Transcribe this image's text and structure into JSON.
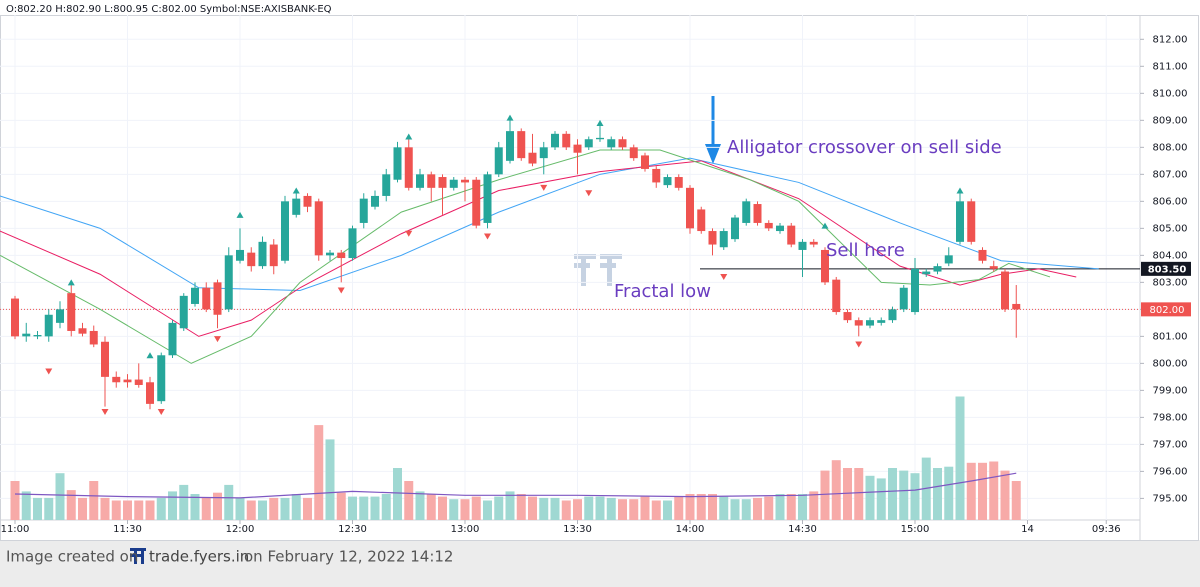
{
  "chart_data": {
    "type": "candlestick",
    "header": "O:802.20 H:802.90 L:800.95 C:802.00 Symbol:NSE:AXISBANK-EQ",
    "x": [
      0,
      3,
      6,
      9,
      12,
      15,
      18,
      21,
      24,
      27,
      30,
      33,
      36,
      39,
      42,
      45,
      48,
      51,
      54,
      57,
      60,
      63,
      66,
      69,
      72,
      75,
      78,
      81,
      84,
      87,
      90,
      93,
      96,
      99,
      102,
      105,
      108,
      111,
      114,
      117,
      120,
      123,
      126,
      129,
      132,
      135,
      138,
      141,
      144,
      147,
      150,
      153,
      156,
      159,
      162,
      165,
      168,
      171,
      174,
      177,
      180,
      183,
      186,
      189,
      192,
      195,
      198,
      201,
      204,
      207,
      210,
      213,
      216,
      219,
      222,
      225,
      228,
      231,
      234,
      237,
      240,
      243,
      246,
      249,
      252,
      255,
      258,
      261,
      264,
      267
    ],
    "open": [
      802.4,
      801.0,
      801.0,
      801.0,
      801.5,
      802.6,
      801.3,
      801.2,
      800.8,
      799.5,
      799.4,
      799.4,
      799.3,
      798.6,
      800.3,
      801.3,
      802.2,
      802.8,
      803.0,
      802.0,
      803.8,
      804.1,
      803.6,
      804.4,
      803.8,
      805.5,
      806.2,
      806.0,
      804.0,
      804.1,
      803.9,
      805.2,
      805.8,
      806.2,
      806.8,
      808.0,
      806.5,
      807.0,
      806.9,
      806.5,
      806.8,
      806.8,
      805.2,
      807.0,
      807.5,
      808.6,
      807.8,
      807.6,
      808.0,
      808.5,
      808.1,
      808.0,
      808.3,
      808.0,
      808.3,
      808.0,
      807.7,
      807.2,
      806.6,
      806.9,
      806.5,
      805.7,
      804.9,
      804.3,
      804.6,
      805.2,
      805.9,
      805.2,
      804.9,
      805.1,
      804.2,
      804.5,
      804.2,
      803.1,
      801.9,
      801.6,
      801.4,
      801.5,
      801.6,
      802.0,
      801.9,
      803.3,
      803.4,
      803.7,
      804.5,
      806.0,
      804.2,
      803.6,
      803.4,
      802.2
    ],
    "high": [
      802.5,
      801.5,
      801.2,
      802.0,
      802.3,
      802.9,
      801.5,
      801.4,
      801.0,
      799.7,
      799.6,
      800.0,
      799.5,
      800.4,
      801.6,
      802.6,
      803.0,
      803.0,
      803.1,
      804.3,
      805.0,
      804.3,
      804.7,
      804.6,
      806.2,
      806.3,
      806.3,
      806.1,
      804.2,
      804.2,
      805.1,
      806.3,
      806.4,
      807.2,
      808.2,
      808.3,
      807.2,
      807.1,
      807.0,
      806.9,
      806.9,
      806.9,
      807.1,
      808.2,
      809.0,
      808.7,
      808.5,
      808.2,
      808.6,
      808.6,
      808.3,
      808.4,
      809.0,
      808.4,
      808.4,
      808.1,
      807.8,
      807.3,
      807.0,
      807.0,
      806.6,
      805.8,
      805.0,
      805.0,
      805.5,
      806.1,
      806.0,
      805.3,
      805.2,
      805.2,
      804.6,
      804.6,
      804.3,
      803.2,
      802.0,
      801.7,
      801.7,
      801.7,
      802.1,
      802.9,
      803.9,
      803.5,
      803.7,
      804.3,
      806.4,
      806.1,
      804.3,
      803.8,
      803.5,
      802.9
    ],
    "low": [
      800.9,
      800.8,
      800.9,
      800.8,
      801.3,
      801.0,
      801.0,
      800.6,
      798.4,
      799.1,
      799.1,
      799.1,
      798.3,
      798.5,
      800.2,
      801.2,
      802.1,
      801.9,
      801.3,
      801.9,
      803.7,
      803.4,
      803.5,
      803.3,
      803.7,
      805.4,
      805.6,
      803.8,
      803.8,
      803.0,
      803.8,
      805.0,
      805.7,
      806.0,
      806.7,
      806.4,
      806.4,
      806.0,
      805.5,
      806.4,
      806.0,
      805.0,
      805.0,
      806.9,
      807.4,
      807.5,
      807.3,
      807.0,
      807.9,
      807.9,
      807.0,
      807.9,
      808.2,
      807.9,
      807.9,
      807.5,
      807.1,
      806.5,
      806.5,
      806.4,
      804.8,
      804.8,
      804.0,
      804.2,
      804.5,
      805.1,
      805.1,
      804.9,
      804.8,
      804.3,
      803.2,
      804.3,
      802.9,
      801.8,
      801.5,
      801.0,
      801.3,
      801.4,
      801.5,
      801.9,
      801.8,
      803.2,
      803.3,
      803.6,
      804.4,
      804.4,
      803.7,
      803.4,
      801.9,
      800.95
    ],
    "close": [
      801.0,
      801.1,
      801.05,
      801.8,
      802.0,
      801.2,
      801.1,
      800.7,
      799.5,
      799.3,
      799.3,
      799.2,
      798.5,
      800.3,
      801.5,
      802.5,
      802.8,
      802.0,
      801.8,
      804.0,
      804.2,
      803.6,
      804.5,
      803.6,
      806.0,
      806.1,
      805.8,
      804.0,
      804.1,
      803.9,
      805.0,
      806.1,
      806.2,
      807.0,
      808.0,
      806.5,
      807.0,
      806.5,
      806.5,
      806.8,
      806.7,
      805.1,
      807.0,
      808.0,
      808.6,
      807.6,
      807.4,
      808.0,
      808.5,
      808.0,
      807.8,
      808.3,
      808.35,
      808.3,
      808.0,
      807.6,
      807.2,
      806.7,
      806.9,
      806.5,
      805.0,
      804.9,
      804.4,
      804.9,
      805.4,
      806.0,
      805.2,
      805.0,
      805.1,
      804.4,
      804.5,
      804.4,
      803.0,
      801.9,
      801.6,
      801.4,
      801.6,
      801.6,
      802.0,
      802.8,
      803.5,
      803.4,
      803.6,
      804.0,
      806.0,
      804.5,
      803.8,
      803.5,
      802.0,
      802.0
    ],
    "up_color": "#26a69a",
    "down_color": "#ef5350",
    "volume": {
      "values": [
        30,
        22,
        17,
        17,
        36,
        23,
        17,
        30,
        17,
        15,
        15,
        15,
        15,
        17,
        22,
        27,
        20,
        17,
        21,
        27,
        17,
        15,
        15,
        17,
        17,
        20,
        17,
        73,
        62,
        21,
        18,
        18,
        18,
        20,
        40,
        30,
        22,
        20,
        18,
        16,
        16,
        18,
        15,
        18,
        22,
        20,
        18,
        17,
        17,
        15,
        16,
        18,
        18,
        17,
        16,
        16,
        18,
        15,
        15,
        18,
        20,
        20,
        20,
        18,
        16,
        16,
        17,
        18,
        20,
        20,
        20,
        22,
        38,
        46,
        40,
        40,
        34,
        32,
        40,
        38,
        36,
        48,
        40,
        41,
        95,
        44,
        44,
        45,
        38,
        30
      ],
      "ylim": [
        0,
        100
      ],
      "up_color": "#9fd8d2",
      "down_color": "#f7aaa8"
    },
    "volume_ma": {
      "color": "#7e57c2",
      "x": [
        0,
        30,
        60,
        90,
        120,
        150,
        180,
        210,
        240,
        255,
        267
      ],
      "values": [
        20,
        18,
        17,
        22,
        19,
        19,
        18,
        19,
        23,
        30,
        36
      ]
    },
    "series": [
      {
        "name": "Jaw",
        "color": "#42a5f5",
        "x": [
          -4,
          22.7,
          49,
          76,
          103,
          129,
          156,
          180,
          209,
          236,
          263,
          289
        ],
        "values": [
          806.2,
          805.0,
          802.8,
          802.7,
          804.0,
          805.6,
          807.0,
          807.6,
          806.7,
          805.2,
          803.8,
          803.5
        ]
      },
      {
        "name": "Teeth",
        "color": "#e91e63",
        "x": [
          -4,
          22.7,
          49,
          63,
          76,
          103,
          129,
          156,
          183,
          209,
          236,
          252,
          263,
          273,
          283
        ],
        "values": [
          804.9,
          803.3,
          801.0,
          801.6,
          802.8,
          804.8,
          806.4,
          807.1,
          807.5,
          806.1,
          803.6,
          802.9,
          803.3,
          803.5,
          803.2
        ]
      },
      {
        "name": "Lips",
        "color": "#66bb6a",
        "x": [
          -4,
          22.7,
          47,
          63,
          76,
          103,
          129,
          156,
          172,
          196,
          209,
          231,
          244,
          257,
          265,
          276
        ],
        "values": [
          804.0,
          802.0,
          800.0,
          801.0,
          803.0,
          805.6,
          806.8,
          807.9,
          807.9,
          806.8,
          806.0,
          803.0,
          802.9,
          803.1,
          803.7,
          803.2
        ]
      }
    ],
    "fractal_up": {
      "color": "#26a69a",
      "x": [
        15,
        36,
        60,
        75,
        105,
        132,
        156,
        216,
        252
      ],
      "values": [
        803.0,
        800.3,
        805.5,
        806.4,
        808.4,
        809.1,
        808.9,
        805.1,
        806.4
      ]
    },
    "fractal_down": {
      "color": "#ef5350",
      "x": [
        9,
        24,
        39,
        54,
        87,
        105,
        126,
        141,
        153,
        189,
        225
      ],
      "values": [
        799.7,
        798.2,
        798.2,
        800.9,
        802.7,
        804.8,
        804.7,
        806.5,
        806.3,
        803.2,
        800.7
      ]
    },
    "price_lines": [
      {
        "value": 803.5,
        "label": "803.50",
        "color": "#131722"
      },
      {
        "value": 802.0,
        "label": "802.00",
        "color": "#ef5350"
      }
    ],
    "annotations": [
      "Alligator crossover on sell side",
      "Sell here",
      "Fractal low"
    ],
    "xlim": [
      -4,
      300
    ],
    "xticks": [
      {
        "value": 0,
        "label": "11:00"
      },
      {
        "value": 30,
        "label": "11:30"
      },
      {
        "value": 60,
        "label": "12:00"
      },
      {
        "value": 90,
        "label": "12:30"
      },
      {
        "value": 120,
        "label": "13:00"
      },
      {
        "value": 150,
        "label": "13:30"
      },
      {
        "value": 180,
        "label": "14:00"
      },
      {
        "value": 210,
        "label": "14:30"
      },
      {
        "value": 240,
        "label": "15:00"
      },
      {
        "value": 270,
        "label": "14"
      },
      {
        "value": 291,
        "label": "09:36"
      }
    ],
    "ylim": [
      794.2,
      812.9
    ],
    "yticks": [
      {
        "value": 795,
        "label": "795.00"
      },
      {
        "value": 796,
        "label": "796.00"
      },
      {
        "value": 797,
        "label": "797.00"
      },
      {
        "value": 798,
        "label": "798.00"
      },
      {
        "value": 799,
        "label": "799.00"
      },
      {
        "value": 800,
        "label": "800.00"
      },
      {
        "value": 801,
        "label": "801.00"
      },
      {
        "value": 802,
        "label": "802.00"
      },
      {
        "value": 803,
        "label": "803.00"
      },
      {
        "value": 804,
        "label": "804.00"
      },
      {
        "value": 805,
        "label": "805.00"
      },
      {
        "value": 806,
        "label": "806.00"
      },
      {
        "value": 807,
        "label": "807.00"
      },
      {
        "value": 808,
        "label": "808.00"
      },
      {
        "value": 809,
        "label": "809.00"
      },
      {
        "value": 810,
        "label": "810.00"
      },
      {
        "value": 811,
        "label": "811.00"
      },
      {
        "value": 812,
        "label": "812.00"
      }
    ]
  },
  "footer": {
    "prefix": "Image created on",
    "brand": "trade.fyers.in",
    "suffix": "on February 12, 2022 14:12"
  }
}
